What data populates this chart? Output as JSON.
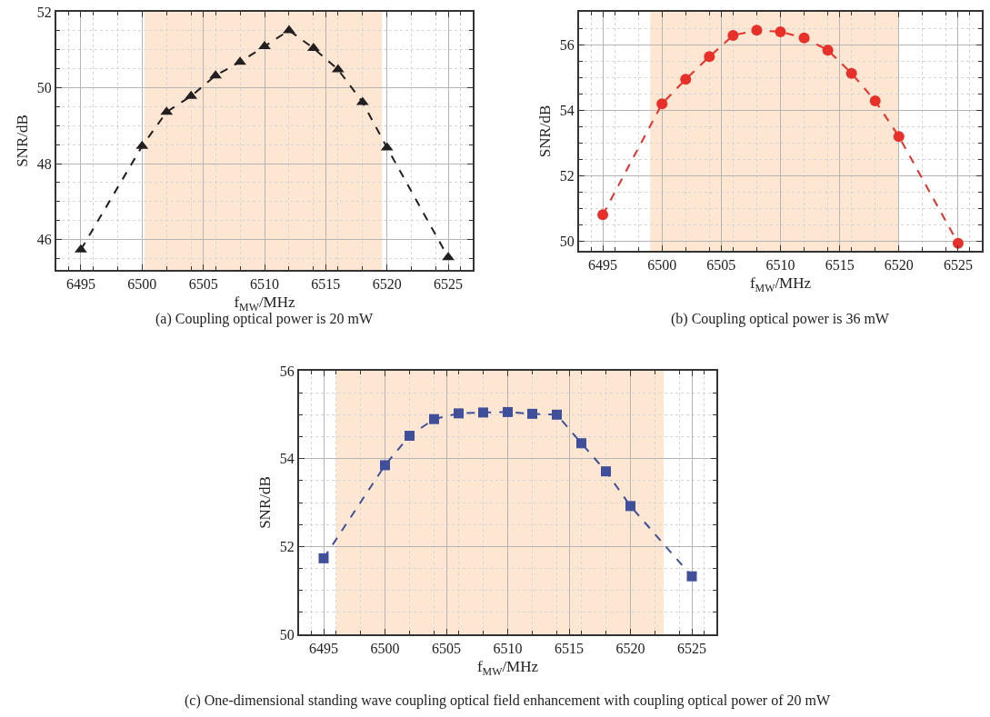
{
  "chart_data": [
    {
      "type": "line",
      "xlabel": "f$_{MW}$/MHz",
      "ylabel": "SNR/dB",
      "annotations": [
        "(a) Coupling optical power is 20 mW"
      ],
      "x": [
        6495,
        6500,
        6502,
        6504,
        6506,
        6508,
        6510,
        6512,
        6514,
        6516,
        6518,
        6520,
        6525
      ],
      "series": [
        {
          "color": "#231f20",
          "values": [
            45.73,
            48.46,
            49.36,
            49.78,
            50.32,
            50.68,
            51.09,
            51.51,
            51.04,
            50.48,
            49.62,
            48.42,
            45.53
          ]
        }
      ],
      "marker": "triangle",
      "line_style": "dashed",
      "grid": true,
      "xlim": [
        6493,
        6527
      ],
      "xticks": [
        6495,
        6500,
        6505,
        6510,
        6515,
        6520,
        6525
      ],
      "ylim": [
        45.2,
        52
      ],
      "yticks": [
        46,
        48,
        50,
        52
      ],
      "bands": [
        {
          "axis": "x",
          "from": 6500.2,
          "to": 6519.6,
          "color": "#fde6d2"
        }
      ]
    },
    {
      "type": "line",
      "xlabel": "f$_{MW}$/MHz",
      "ylabel": "SNR/dB",
      "annotations": [
        "(b) Coupling optical power is 36 mW"
      ],
      "x": [
        6495,
        6500,
        6502,
        6504,
        6506,
        6508,
        6510,
        6512,
        6514,
        6516,
        6518,
        6520,
        6525
      ],
      "series": [
        {
          "color": "#e8302a",
          "values": [
            50.8,
            54.19,
            54.94,
            55.63,
            56.28,
            56.44,
            56.39,
            56.2,
            55.83,
            55.12,
            54.28,
            53.19,
            49.93
          ]
        }
      ],
      "marker": "circle",
      "line_style": "dashed",
      "grid": true,
      "xlim": [
        6493,
        6527
      ],
      "xticks": [
        6495,
        6500,
        6505,
        6510,
        6515,
        6520,
        6525
      ],
      "ylim": [
        49.7,
        57
      ],
      "yticks": [
        50,
        52,
        54,
        56
      ],
      "bands": [
        {
          "axis": "x",
          "from": 6499,
          "to": 6520,
          "color": "#fde6d2"
        }
      ]
    },
    {
      "type": "line",
      "xlabel": "f$_{MW}$/MHz",
      "ylabel": "SNR/dB",
      "annotations": [
        "(c) One-dimensional standing wave coupling optical field enhancement with coupling optical power of 20 mW"
      ],
      "x": [
        6495,
        6500,
        6502,
        6504,
        6506,
        6508,
        6510,
        6512,
        6514,
        6516,
        6518,
        6520,
        6525
      ],
      "series": [
        {
          "color": "#3f4f9a",
          "values": [
            51.73,
            53.85,
            54.52,
            54.9,
            55.03,
            55.05,
            55.06,
            55.02,
            55.0,
            54.35,
            53.71,
            52.92,
            51.32
          ]
        }
      ],
      "marker": "square",
      "line_style": "dashed",
      "grid": true,
      "xlim": [
        6493,
        6527
      ],
      "xticks": [
        6495,
        6500,
        6505,
        6510,
        6515,
        6520,
        6525
      ],
      "ylim": [
        50,
        56
      ],
      "yticks": [
        50,
        52,
        54,
        56
      ],
      "bands": [
        {
          "axis": "x",
          "from": 6496,
          "to": 6522.7,
          "color": "#fde6d2"
        }
      ]
    }
  ]
}
